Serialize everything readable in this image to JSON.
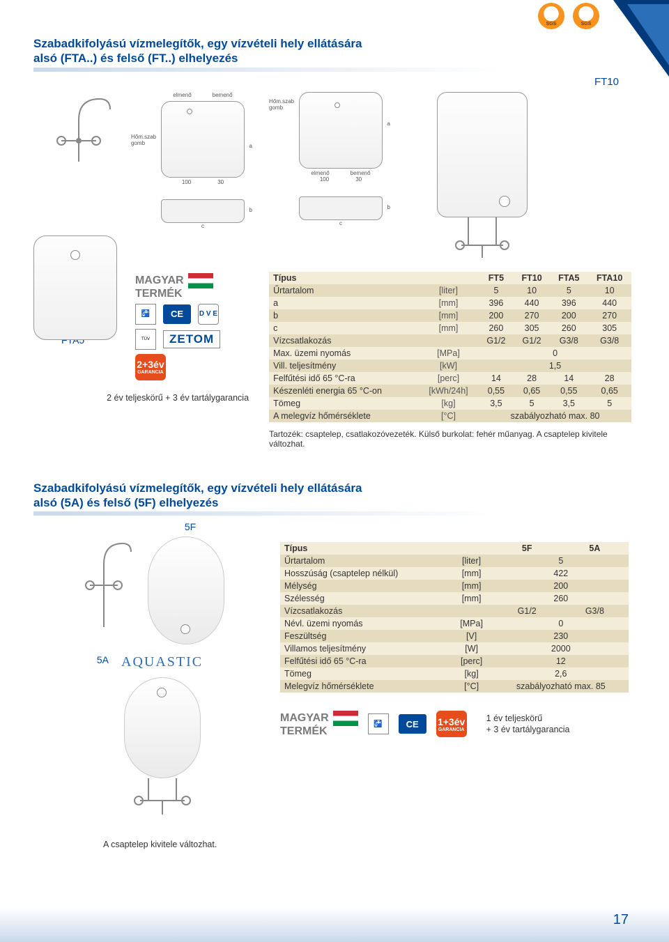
{
  "sgs_label": "SGS",
  "section1": {
    "title_line1": "Szabadkifolyású vízmelegítők, egy vízvételi hely ellátására",
    "title_line2": "alsó (FTA..) és felső (FT..) elhelyezés",
    "model_top_right": "FT10",
    "diagram_labels": {
      "elmeno": "elmenő",
      "bemeno": "bemenő",
      "homszob": "Hőm.szab",
      "gomb": "gomb",
      "dim100": "100",
      "dim30": "30",
      "b": "b",
      "c": "c"
    },
    "left_label": "FTA5",
    "magyar": "MAGYAR",
    "termek": "TERMÉK",
    "ce": "CE",
    "dve": "D V E",
    "zetom": "ZETOM",
    "tuv": "TÜV",
    "garancia_main": "2+3év",
    "garancia_sub": "GARANCIA",
    "warranty": "2 év teljeskörű + 3 év tartálygarancia",
    "footnote": "Tartozék: csaptelep, csatlakozóvezeték. Külső burkolat: fehér műanyag. A csaptelep kivitele változhat.",
    "table": {
      "header": [
        "Típus",
        "",
        "FT5",
        "FT10",
        "FTA5",
        "FTA10"
      ],
      "rows": [
        [
          "Űrtartalom",
          "[liter]",
          "5",
          "10",
          "5",
          "10"
        ],
        [
          "a",
          "[mm]",
          "396",
          "440",
          "396",
          "440"
        ],
        [
          "b",
          "[mm]",
          "200",
          "270",
          "200",
          "270"
        ],
        [
          "c",
          "[mm]",
          "260",
          "305",
          "260",
          "305"
        ],
        [
          "Vízcsatlakozás",
          "",
          "G1/2",
          "G1/2",
          "G3/8",
          "G3/8"
        ],
        [
          "Max. üzemi nyomás",
          "[MPa]",
          {
            "span": 4,
            "val": "0"
          }
        ],
        [
          "Vill. teljesítmény",
          "[kW]",
          {
            "span": 4,
            "val": "1,5"
          }
        ],
        [
          "Felfűtési idő 65 °C-ra",
          "[perc]",
          "14",
          "28",
          "14",
          "28"
        ],
        [
          "Készenléti energia 65 °C-on",
          "[kWh/24h]",
          "0,55",
          "0,65",
          "0,55",
          "0,65"
        ],
        [
          "Tömeg",
          "[kg]",
          "3,5",
          "5",
          "3,5",
          "5"
        ],
        [
          "A melegvíz hőmérséklete",
          "[°C]",
          {
            "span": 4,
            "val": "szabályozható max. 80"
          }
        ]
      ]
    }
  },
  "section2": {
    "title_line1": "Szabadkifolyású vízmelegítők, egy vízvételi hely ellátására",
    "title_line2": "alsó (5A) és felső (5F) elhelyezés",
    "label_5f": "5F",
    "label_5a": "5A",
    "brand": "AQUASTIC",
    "table": {
      "header": [
        "Típus",
        "",
        "5F",
        "5A"
      ],
      "rows": [
        [
          "Űrtartalom",
          "[liter]",
          {
            "span": 2,
            "val": "5"
          }
        ],
        [
          "Hosszúság (csaptelep nélkül)",
          "[mm]",
          {
            "span": 2,
            "val": "422"
          }
        ],
        [
          "Mélység",
          "[mm]",
          {
            "span": 2,
            "val": "200"
          }
        ],
        [
          "Szélesség",
          "[mm]",
          {
            "span": 2,
            "val": "260"
          }
        ],
        [
          "Vízcsatlakozás",
          "",
          "G1/2",
          "G3/8"
        ],
        [
          "Névl. üzemi nyomás",
          "[MPa]",
          {
            "span": 2,
            "val": "0"
          }
        ],
        [
          "Feszültség",
          "[V]",
          {
            "span": 2,
            "val": "230"
          }
        ],
        [
          "Villamos teljesítmény",
          "[W]",
          {
            "span": 2,
            "val": "2000"
          }
        ],
        [
          "Felfűtési idő 65 °C-ra",
          "[perc]",
          {
            "span": 2,
            "val": "12"
          }
        ],
        [
          "Tömeg",
          "[kg]",
          {
            "span": 2,
            "val": "2,6"
          }
        ],
        [
          "Melegvíz hőmérséklete",
          "[°C]",
          {
            "span": 2,
            "val": "szabályozható max. 85"
          }
        ]
      ]
    },
    "magyar": "MAGYAR",
    "termek": "TERMÉK",
    "ce": "CE",
    "garancia_main": "1+3év",
    "garancia_sub": "GARANCIA",
    "warranty_l1": "1 év teljeskörű",
    "warranty_l2": "+ 3 év tartálygarancia",
    "bottom_note": "A csaptelep kivitele változhat."
  },
  "page_number": "17",
  "colors": {
    "title": "#004a99",
    "table_odd": "#f3ecd8",
    "table_even": "#e5dcc0",
    "accent_orange": "#e74c1c"
  }
}
